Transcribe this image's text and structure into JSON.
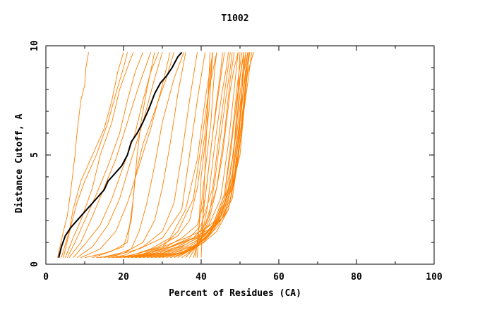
{
  "chart_data": {
    "type": "line",
    "title": "T1002",
    "xlabel": "Percent of Residues (CA)",
    "ylabel": "Distance Cutoff, A",
    "xlim": [
      0,
      100
    ],
    "ylim": [
      0,
      10
    ],
    "x_ticks": [
      "0",
      "20",
      "40",
      "60",
      "80",
      "100"
    ],
    "y_ticks": [
      "0",
      "5",
      "10"
    ],
    "grid": false,
    "legend": "none",
    "colors": {
      "models": "#ff8000",
      "highlight": "#000000",
      "axes": "#000000"
    },
    "highlight_series": {
      "x": [
        3.3,
        4.0,
        5.0,
        6.5,
        8.5,
        11.0,
        13.0,
        15.0,
        16.0,
        17.5,
        19.5,
        21.0,
        22.0,
        23.5,
        25.0,
        26.5,
        28.0,
        29.5,
        31.0,
        32.5,
        34.0,
        35.0
      ],
      "y": [
        0.3,
        0.8,
        1.3,
        1.7,
        2.1,
        2.6,
        3.0,
        3.4,
        3.8,
        4.1,
        4.5,
        5.0,
        5.6,
        6.0,
        6.5,
        7.1,
        7.8,
        8.3,
        8.6,
        9.0,
        9.5,
        9.7
      ]
    },
    "series": [
      {
        "x": [
          3.0,
          4.5,
          5.5,
          6.5,
          7.5,
          8.0,
          9.0,
          10.0,
          10.3,
          11.0
        ],
        "y": [
          0.3,
          1.5,
          2.2,
          3.5,
          5.0,
          6.0,
          7.5,
          8.2,
          9.0,
          9.7
        ]
      },
      {
        "x": [
          4.0,
          6.0,
          7.0,
          9.0,
          12.0,
          15.0,
          17.0,
          18.5,
          20.0
        ],
        "y": [
          0.3,
          1.5,
          2.5,
          3.8,
          5.0,
          6.2,
          7.5,
          8.8,
          9.7
        ]
      },
      {
        "x": [
          4.5,
          6.5,
          8.0,
          10.0,
          13.0,
          16.0,
          18.0,
          20.0,
          21.0
        ],
        "y": [
          0.3,
          1.8,
          2.8,
          3.8,
          5.0,
          6.5,
          7.8,
          9.0,
          9.7
        ]
      },
      {
        "x": [
          5.0,
          7.0,
          9.0,
          12.0,
          14.0,
          17.0,
          19.0,
          21.0,
          22.5
        ],
        "y": [
          0.3,
          1.2,
          2.0,
          3.5,
          5.0,
          6.5,
          8.0,
          9.0,
          9.7
        ]
      },
      {
        "x": [
          5.5,
          7.5,
          10.0,
          13.0,
          16.0,
          19.0,
          21.0,
          23.0,
          25.0
        ],
        "y": [
          0.3,
          1.0,
          2.0,
          3.2,
          4.5,
          6.0,
          7.5,
          8.8,
          9.7
        ]
      },
      {
        "x": [
          6.0,
          9.0,
          12.0,
          15.0,
          18.0,
          21.0,
          24.0,
          27.0
        ],
        "y": [
          0.3,
          1.0,
          2.2,
          3.5,
          4.8,
          6.5,
          8.2,
          9.7
        ]
      },
      {
        "x": [
          7.0,
          10.0,
          14.0,
          17.0,
          20.0,
          23.0,
          25.0,
          27.0,
          29.0
        ],
        "y": [
          0.3,
          0.9,
          1.8,
          3.0,
          4.5,
          6.0,
          7.5,
          8.8,
          9.7
        ]
      },
      {
        "x": [
          8.0,
          12.0,
          16.0,
          19.0,
          22.0,
          25.0,
          28.0,
          30.0
        ],
        "y": [
          0.3,
          0.8,
          1.8,
          3.0,
          4.8,
          6.5,
          8.5,
          9.7
        ]
      },
      {
        "x": [
          9.0,
          14.0,
          18.0,
          21.0,
          24.0,
          27.0,
          30.0,
          32.0
        ],
        "y": [
          0.3,
          0.7,
          1.5,
          2.8,
          4.5,
          6.2,
          8.2,
          9.7
        ]
      },
      {
        "x": [
          10.0,
          15.0,
          20.0,
          22.0,
          23.0,
          25.0,
          28.0,
          31.0,
          33.0
        ],
        "y": [
          0.3,
          0.5,
          0.8,
          2.0,
          4.0,
          5.5,
          7.0,
          8.5,
          9.7
        ]
      },
      {
        "x": [
          12.0,
          17.0,
          21.0,
          22.5,
          23.5,
          24.5,
          26.0,
          28.0
        ],
        "y": [
          0.3,
          0.6,
          1.0,
          3.0,
          5.0,
          6.5,
          8.0,
          9.7
        ]
      },
      {
        "x": [
          14.0,
          19.0,
          22.0,
          24.0,
          26.0,
          28.0,
          30.0,
          33.0,
          35.5
        ],
        "y": [
          0.3,
          0.5,
          0.7,
          1.5,
          2.8,
          4.5,
          6.5,
          8.5,
          9.7
        ]
      },
      {
        "x": [
          15.0,
          20.0,
          25.0,
          28.0,
          30.0,
          32.0,
          34.0,
          36.0
        ],
        "y": [
          0.3,
          0.5,
          1.0,
          2.0,
          3.5,
          5.5,
          7.8,
          9.7
        ]
      },
      {
        "x": [
          16.0,
          20.0,
          25.0,
          30.0,
          33.0,
          35.0,
          37.0,
          39.0
        ],
        "y": [
          0.3,
          0.4,
          0.8,
          1.5,
          2.8,
          5.0,
          7.5,
          9.7
        ]
      },
      {
        "x": [
          13.0,
          18.0,
          24.0,
          30.0,
          35.0,
          37.0,
          39.0,
          41.0
        ],
        "y": [
          0.3,
          0.4,
          0.7,
          1.2,
          2.5,
          5.0,
          7.5,
          9.7
        ]
      },
      {
        "x": [
          17.0,
          22.0,
          27.0,
          32.0,
          36.0,
          39.0,
          41.0,
          43.0
        ],
        "y": [
          0.3,
          0.4,
          0.7,
          1.2,
          2.5,
          4.8,
          7.5,
          9.7
        ]
      },
      {
        "x": [
          18.0,
          24.0,
          30.0,
          34.0,
          38.0,
          40.0,
          42.0,
          44.0
        ],
        "y": [
          0.3,
          0.4,
          0.8,
          1.5,
          3.0,
          5.5,
          8.0,
          9.7
        ]
      },
      {
        "x": [
          19.0,
          24.0,
          29.0,
          34.0,
          37.0,
          39.0,
          41.0,
          42.0,
          43.0
        ],
        "y": [
          0.3,
          0.5,
          0.8,
          1.3,
          2.0,
          3.5,
          6.0,
          8.0,
          9.7
        ]
      },
      {
        "x": [
          20.0,
          26.0,
          31.0,
          35.0,
          39.0,
          41.0,
          43.0,
          45.0,
          46.0
        ],
        "y": [
          0.3,
          0.5,
          0.8,
          1.2,
          1.8,
          3.0,
          6.0,
          8.5,
          9.7
        ]
      },
      {
        "x": [
          21.0,
          27.0,
          32.0,
          37.0,
          40.0,
          43.0,
          45.0,
          46.5,
          47.5
        ],
        "y": [
          0.3,
          0.5,
          0.8,
          1.2,
          1.8,
          3.5,
          6.5,
          8.5,
          9.7
        ]
      },
      {
        "x": [
          22.0,
          28.0,
          34.0,
          38.0,
          41.0,
          44.0,
          46.0,
          47.5,
          48.5
        ],
        "y": [
          0.3,
          0.5,
          0.8,
          1.2,
          1.8,
          3.5,
          6.0,
          8.5,
          9.7
        ]
      },
      {
        "x": [
          23.0,
          29.0,
          35.0,
          39.0,
          42.0,
          45.0,
          47.0,
          48.5,
          49.5
        ],
        "y": [
          0.3,
          0.5,
          0.8,
          1.2,
          1.8,
          3.0,
          5.5,
          8.0,
          9.7
        ]
      },
      {
        "x": [
          24.0,
          30.0,
          36.0,
          40.0,
          43.0,
          46.0,
          48.0,
          49.5,
          50.5
        ],
        "y": [
          0.3,
          0.5,
          0.8,
          1.2,
          1.8,
          3.2,
          6.0,
          8.5,
          9.7
        ]
      },
      {
        "x": [
          25.0,
          31.0,
          37.0,
          41.0,
          44.0,
          47.0,
          49.0,
          50.0,
          51.0
        ],
        "y": [
          0.3,
          0.5,
          0.8,
          1.3,
          2.0,
          3.5,
          6.0,
          8.5,
          9.7
        ]
      },
      {
        "x": [
          26.0,
          32.0,
          38.0,
          42.0,
          45.0,
          48.0,
          49.5,
          51.0,
          52.0
        ],
        "y": [
          0.3,
          0.5,
          0.8,
          1.3,
          2.2,
          3.8,
          6.5,
          8.8,
          9.7
        ]
      },
      {
        "x": [
          27.0,
          33.0,
          39.0,
          43.0,
          46.0,
          48.5,
          50.0,
          51.5,
          52.5
        ],
        "y": [
          0.3,
          0.5,
          0.9,
          1.5,
          2.5,
          4.0,
          6.5,
          8.8,
          9.7
        ]
      },
      {
        "x": [
          28.0,
          34.0,
          40.0,
          44.0,
          47.0,
          49.0,
          50.5,
          52.0,
          53.5
        ],
        "y": [
          0.3,
          0.5,
          0.9,
          1.5,
          2.5,
          4.2,
          6.8,
          8.8,
          9.7
        ]
      },
      {
        "x": [
          29.0,
          35.0,
          40.5,
          44.5,
          47.5,
          49.5,
          51.0,
          52.5,
          53.0
        ],
        "y": [
          0.3,
          0.5,
          1.0,
          1.8,
          3.0,
          4.8,
          7.0,
          9.0,
          9.7
        ]
      },
      {
        "x": [
          30.0,
          36.0,
          41.0,
          45.0,
          48.0,
          50.0,
          51.0,
          52.0,
          52.5
        ],
        "y": [
          0.3,
          0.6,
          1.2,
          2.2,
          3.5,
          5.0,
          7.0,
          9.0,
          9.7
        ]
      },
      {
        "x": [
          31.0,
          36.5,
          41.5,
          45.5,
          48.5,
          50.0,
          51.0,
          51.8,
          52.2
        ],
        "y": [
          0.3,
          0.6,
          1.2,
          2.5,
          4.0,
          5.5,
          7.2,
          9.0,
          9.7
        ]
      },
      {
        "x": [
          32.0,
          37.0,
          42.0,
          46.0,
          48.5,
          49.5,
          50.5,
          51.5,
          52.0
        ],
        "y": [
          0.3,
          0.6,
          1.3,
          2.8,
          4.5,
          6.0,
          7.5,
          9.0,
          9.7
        ]
      },
      {
        "x": [
          33.0,
          38.0,
          42.5,
          46.0,
          48.0,
          49.0,
          50.0,
          51.0,
          51.5
        ],
        "y": [
          0.3,
          0.7,
          1.5,
          3.0,
          4.8,
          6.2,
          7.8,
          9.2,
          9.7
        ]
      },
      {
        "x": [
          34.0,
          38.5,
          43.0,
          46.0,
          47.5,
          48.5,
          49.5,
          50.5,
          51.0
        ],
        "y": [
          0.3,
          0.8,
          1.8,
          3.2,
          5.0,
          6.5,
          8.0,
          9.2,
          9.7
        ]
      },
      {
        "x": [
          35.0,
          39.0,
          42.0,
          44.0,
          45.5,
          46.5,
          47.5,
          48.5,
          49.5
        ],
        "y": [
          0.3,
          0.8,
          2.0,
          3.5,
          5.0,
          6.5,
          8.0,
          9.0,
          9.7
        ]
      },
      {
        "x": [
          36.0,
          39.5,
          42.0,
          43.5,
          44.5,
          45.5,
          46.5,
          47.5,
          48.0
        ],
        "y": [
          0.3,
          1.0,
          2.2,
          3.8,
          5.2,
          6.5,
          7.8,
          9.0,
          9.7
        ]
      },
      {
        "x": [
          37.0,
          40.0,
          41.5,
          42.5,
          43.5,
          44.5,
          45.5,
          46.5,
          47.0
        ],
        "y": [
          0.3,
          1.2,
          2.5,
          4.0,
          5.5,
          6.8,
          8.0,
          9.0,
          9.7
        ]
      },
      {
        "x": [
          38.0,
          40.0,
          41.0,
          42.0,
          43.0,
          44.0,
          45.0,
          45.5
        ],
        "y": [
          0.3,
          1.5,
          3.0,
          4.5,
          6.0,
          7.5,
          8.8,
          9.7
        ]
      },
      {
        "x": [
          38.5,
          39.5,
          40.5,
          41.5,
          42.5,
          43.0,
          43.5,
          44.0
        ],
        "y": [
          0.3,
          1.8,
          3.5,
          5.0,
          6.5,
          7.8,
          9.0,
          9.7
        ]
      },
      {
        "x": [
          39.0,
          39.5,
          40.0,
          41.0,
          42.0,
          42.5,
          43.0
        ],
        "y": [
          0.3,
          2.0,
          4.0,
          5.5,
          7.0,
          8.5,
          9.7
        ]
      },
      {
        "x": [
          40.0,
          40.5,
          41.0,
          41.5,
          42.0,
          42.3
        ],
        "y": [
          0.3,
          2.5,
          4.5,
          6.5,
          8.5,
          9.7
        ]
      },
      {
        "x": [
          19.0,
          24.0,
          30.0,
          36.0,
          41.0,
          45.0,
          48.0,
          49.5,
          50.0
        ],
        "y": [
          0.3,
          0.5,
          0.8,
          1.2,
          1.6,
          2.2,
          4.0,
          8.0,
          9.7
        ]
      },
      {
        "x": [
          20.0,
          26.0,
          32.0,
          38.0,
          42.0,
          46.0,
          49.0,
          50.5,
          51.0
        ],
        "y": [
          0.3,
          0.5,
          0.8,
          1.2,
          1.6,
          2.2,
          4.5,
          8.0,
          9.7
        ]
      },
      {
        "x": [
          22.0,
          28.0,
          34.0,
          40.0,
          44.0,
          47.0,
          49.5,
          50.5,
          51.5
        ],
        "y": [
          0.3,
          0.5,
          0.9,
          1.3,
          1.8,
          2.5,
          5.0,
          8.0,
          9.7
        ]
      },
      {
        "x": [
          23.0,
          30.0,
          36.0,
          41.0,
          45.0,
          48.0,
          50.0,
          51.5,
          53.5
        ],
        "y": [
          0.3,
          0.5,
          0.9,
          1.4,
          2.0,
          3.0,
          5.5,
          8.5,
          9.7
        ]
      }
    ]
  }
}
